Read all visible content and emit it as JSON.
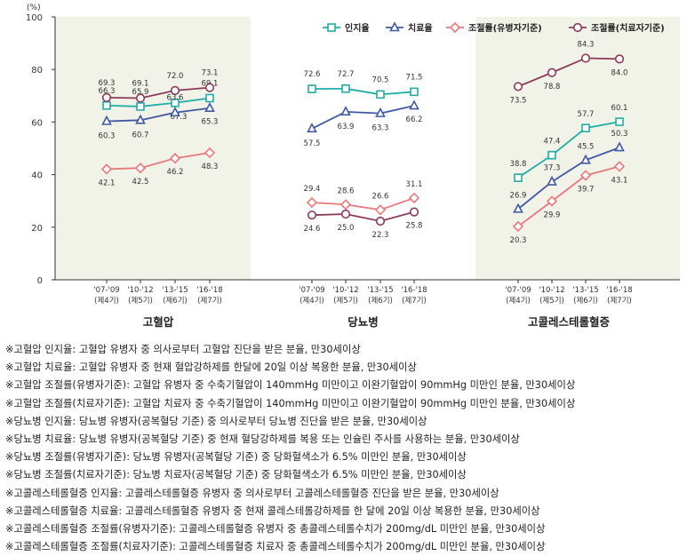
{
  "chart_data": {
    "type": "line",
    "y_unit": "(%)",
    "ylim": [
      0,
      100
    ],
    "yticks": [
      0,
      20,
      40,
      60,
      80,
      100
    ],
    "grid": false,
    "legend_position": "top-right",
    "period_labels": [
      [
        "'07-'09",
        "(제4기)"
      ],
      [
        "'10-'12",
        "(제5기)"
      ],
      [
        "'13-'15",
        "(제6기)"
      ],
      [
        "'16-'18",
        "(제7기)"
      ]
    ],
    "series_styles": [
      {
        "name": "인지율",
        "color": "#1fada6",
        "marker": "square"
      },
      {
        "name": "치료율",
        "color": "#4058a4",
        "marker": "triangle"
      },
      {
        "name": "조절률(유병자기준)",
        "color": "#e8787a",
        "marker": "diamond"
      },
      {
        "name": "조절률(치료자기준)",
        "color": "#8b3a5c",
        "marker": "circle"
      }
    ],
    "groups": [
      {
        "name": "고혈압",
        "shaded": true,
        "series": [
          {
            "name": "인지율",
            "values": [
              66.3,
              65.9,
              67.3,
              69.1
            ]
          },
          {
            "name": "치료율",
            "values": [
              60.3,
              60.7,
              63.6,
              65.3
            ]
          },
          {
            "name": "조절률(유병자기준)",
            "values": [
              42.1,
              42.5,
              46.2,
              48.3
            ]
          },
          {
            "name": "조절률(치료자기준)",
            "values": [
              69.3,
              69.1,
              72.0,
              73.1
            ]
          }
        ]
      },
      {
        "name": "당뇨병",
        "shaded": false,
        "series": [
          {
            "name": "인지율",
            "values": [
              72.6,
              72.7,
              70.5,
              71.5
            ]
          },
          {
            "name": "치료율",
            "values": [
              57.5,
              63.9,
              63.3,
              66.2
            ]
          },
          {
            "name": "조절률(유병자기준)",
            "values": [
              29.4,
              28.6,
              26.6,
              31.1
            ]
          },
          {
            "name": "조절률(치료자기준)",
            "values": [
              24.6,
              25.0,
              22.3,
              25.8
            ]
          }
        ]
      },
      {
        "name": "고콜레스테롤혈증",
        "shaded": true,
        "series": [
          {
            "name": "인지율",
            "values": [
              38.8,
              47.4,
              57.7,
              60.1
            ]
          },
          {
            "name": "치료율",
            "values": [
              26.9,
              37.3,
              45.5,
              50.3
            ]
          },
          {
            "name": "조절률(유병자기준)",
            "values": [
              20.3,
              29.9,
              39.7,
              43.1
            ]
          },
          {
            "name": "조절률(치료자기준)",
            "values": [
              73.5,
              78.8,
              84.3,
              84.0
            ]
          }
        ]
      }
    ]
  },
  "notes": [
    "※고혈압 인지율: 고혈압 유병자 중 의사로부터 고혈압 진단을 받은 분율, 만30세이상",
    "※고혈압 치료율: 고혈압 유병자 중 현재 혈압강하제를 한달에 20일 이상 복용한 분율, 만30세이상",
    "※고혈압 조절률(유병자기준): 고혈압 유병자 중 수축기혈압이 140mmHg 미만이고 이완기혈압이 90mmHg 미만인 분율, 만30세이상",
    "※고혈압 조절률(치료자기준): 고혈압 치료자 중 수축기혈압이 140mmHg 미만이고 이완기혈압이 90mmHg 미만인 분율, 만30세이상",
    "※당뇨병 인지율: 당뇨병 유병자(공복혈당 기준) 중 의사로부터 당뇨병 진단을 받은 분율, 만30세이상",
    "※당뇨병 치료율: 당뇨병 유병자(공복혈당 기준) 중 현재 혈당강하제를 복용 또는 인슐린 주사를 사용하는 분율, 만30세이상",
    "※당뇨병 조절률(유병자기준): 당뇨병 유병자(공복혈당 기준) 중 당화혈색소가 6.5% 미만인 분율, 만30세이상",
    "※당뇨병 조절률(치료자기준): 당뇨병 치료자(공복혈당 기준) 중 당화혈색소가 6.5% 미만인 분율, 만30세이상",
    "※고콜레스테롤혈증 인지율: 고콜레스테롤혈증 유병자 중 의사로부터 고콜레스테롤혈증 진단을 받은 분율, 만30세이상",
    "※고콜레스테롤혈증 치료율: 고콜레스테롤혈증 유병자 중 현재 콜레스테롤강하제를 한 달에 20일 이상 복용한 분율, 만30세이상",
    "※고콜레스테롤혈증 조절률(유병자기준): 고콜레스테롤혈증 유병자 중 총콜레스테롤수치가 200mg/dL 미만인 분율, 만30세이상",
    "※고콜레스테롤혈증 조절률(치료자기준): 고콜레스테롤혈증 치료자 중 총콜레스테롤수치가 200mg/dL 미만인 분율, 만30세이상"
  ]
}
